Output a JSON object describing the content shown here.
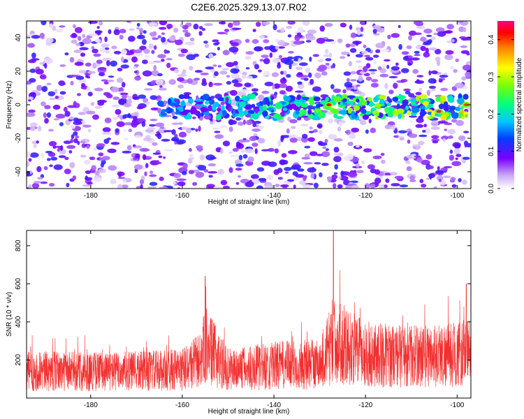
{
  "title": "C2E6.2025.329.13.07.R02",
  "colors": {
    "snr_line": "#f23030",
    "axis": "#000000"
  },
  "chart_data": [
    {
      "type": "heatmap",
      "xlabel": "Height of straight line (km)",
      "ylabel": "Frequency (Hz)",
      "xlim": [
        -194,
        -97
      ],
      "ylim": [
        -50,
        50
      ],
      "xticks": [
        -180,
        -160,
        -140,
        -120,
        -100
      ],
      "yticks": [
        -40,
        -20,
        0,
        20,
        40
      ],
      "colorbar": {
        "label": "Normalized spectral amplitude",
        "range": [
          0,
          0.45
        ],
        "ticks": [
          0.0,
          0.1,
          0.2,
          0.3,
          0.4
        ],
        "tick_labels": [
          "0.0",
          "0.1",
          "0.2",
          "0.3",
          "0.4"
        ]
      },
      "features": [
        {
          "name": "noise floor",
          "freq_hz": [
            -50,
            50
          ],
          "x_km": [
            -194,
            -97
          ],
          "amplitude": 0.05
        },
        {
          "name": "signal band near 0 Hz",
          "freq_hz": [
            -8,
            5
          ],
          "x_km": [
            -165,
            -98
          ],
          "amplitude": 0.2
        },
        {
          "name": "peak",
          "freq_hz": 0,
          "x_km": -128,
          "amplitude": 0.42
        },
        {
          "name": "peak",
          "freq_hz": -4,
          "x_km": -104,
          "amplitude": 0.45
        },
        {
          "name": "peak",
          "freq_hz": 0,
          "x_km": -98,
          "amplitude": 0.4
        }
      ]
    },
    {
      "type": "line",
      "xlabel": "Height of straight line (km)",
      "ylabel": "SNR (10 * v/v)",
      "xlim": [
        -194,
        -97
      ],
      "ylim": [
        0,
        880
      ],
      "xticks": [
        -180,
        -160,
        -140,
        -120,
        -100
      ],
      "yticks": [
        200,
        400,
        600,
        800
      ],
      "series": [
        {
          "name": "SNR",
          "x_start": -194,
          "x_end": -97,
          "baseline_x": [
            -194,
            -170,
            -160,
            -156,
            -155,
            -150,
            -140,
            -130,
            -128,
            -127,
            -120,
            -110,
            -100,
            -97
          ],
          "baseline_y": [
            140,
            140,
            150,
            200,
            280,
            150,
            170,
            180,
            260,
            300,
            230,
            220,
            230,
            240
          ],
          "peaks": [
            {
              "x": -155,
              "y": 640
            },
            {
              "x": -127,
              "y": 880
            },
            {
              "x": -98,
              "y": 600
            }
          ]
        }
      ]
    }
  ]
}
